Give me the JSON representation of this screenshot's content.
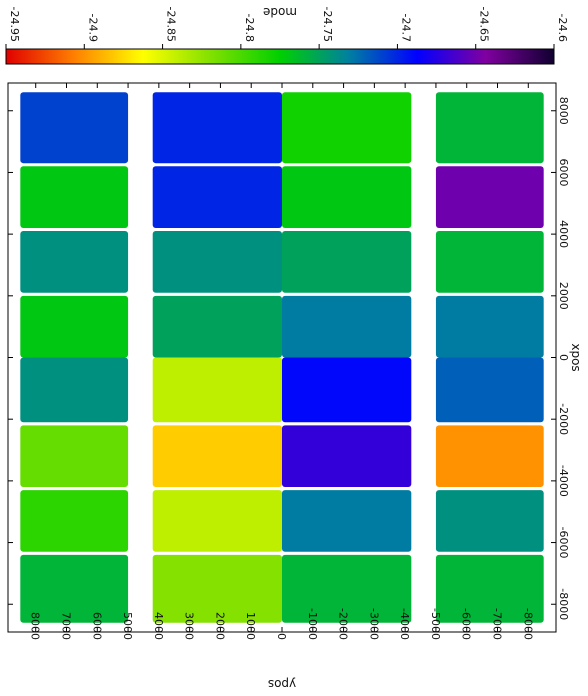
{
  "chart_data": {
    "type": "heatmap",
    "rotated_deg": 90,
    "colorbar": {
      "label": "mode",
      "range": [
        -24.95,
        -24.6
      ],
      "tick_values": [
        -24.95,
        -24.9,
        -24.85,
        -24.8,
        -24.75,
        -24.7,
        -24.65,
        -24.6
      ],
      "tick_labels": [
        "-24.95",
        "-24.9",
        "-24.85",
        "-24.8",
        "-24.75",
        "-24.7",
        "-24.65",
        "-24.6"
      ],
      "palette": [
        "#e00000",
        "#ff8000",
        "#ffff00",
        "#80e000",
        "#00d000",
        "#0080a0",
        "#0000ff",
        "#8000a0",
        "#100030"
      ]
    },
    "xaxis": {
      "label": "xpos",
      "range": [
        -8900,
        8900
      ],
      "tick_values": [
        -8000,
        -6000,
        -4000,
        -2000,
        0,
        2000,
        4000,
        6000,
        8000
      ],
      "tick_labels": [
        "-8000",
        "-6000",
        "-4000",
        "-2000",
        "0",
        "2000",
        "4000",
        "6000",
        "8000"
      ]
    },
    "yaxis": {
      "label": "ypos",
      "range": [
        8900,
        -8900
      ],
      "tick_values": [
        8000,
        7000,
        6000,
        5000,
        4000,
        3000,
        2000,
        1000,
        0,
        -1000,
        -2000,
        -3000,
        -4000,
        -5000,
        -6000,
        -7000,
        -8000
      ],
      "tick_labels": [
        "8000",
        "7000",
        "6000",
        "5000",
        "4000",
        "3000",
        "2000",
        "1000",
        "0",
        "-1000",
        "-2000",
        "-3000",
        "-4000",
        "-5000",
        "-6000",
        "-7000",
        "-8000"
      ]
    },
    "col_bands_y": [
      [
        8500,
        5000
      ],
      [
        4200,
        0
      ],
      [
        0,
        -4200
      ],
      [
        -5000,
        -8500
      ]
    ],
    "row_bands_x": [
      [
        -8600,
        -6400
      ],
      [
        -6300,
        -4300
      ],
      [
        -4200,
        -2200
      ],
      [
        -2100,
        0
      ],
      [
        0,
        2000
      ],
      [
        2100,
        4100
      ],
      [
        4200,
        6200
      ],
      [
        6300,
        8600
      ]
    ],
    "panels": [
      [
        -24.76,
        -24.79,
        -24.81,
        -24.74,
        -24.77,
        -24.74,
        -24.77,
        -24.71
      ],
      [
        -24.82,
        -24.84,
        -24.88,
        -24.84,
        -24.75,
        -24.74,
        -24.7,
        -24.7
      ],
      [
        -24.76,
        -24.73,
        -24.67,
        -24.69,
        -24.73,
        -24.75,
        -24.77,
        -24.78
      ],
      [
        -24.76,
        -24.74,
        -24.9,
        -24.72,
        -24.73,
        -24.76,
        -24.65,
        -24.76
      ]
    ]
  }
}
